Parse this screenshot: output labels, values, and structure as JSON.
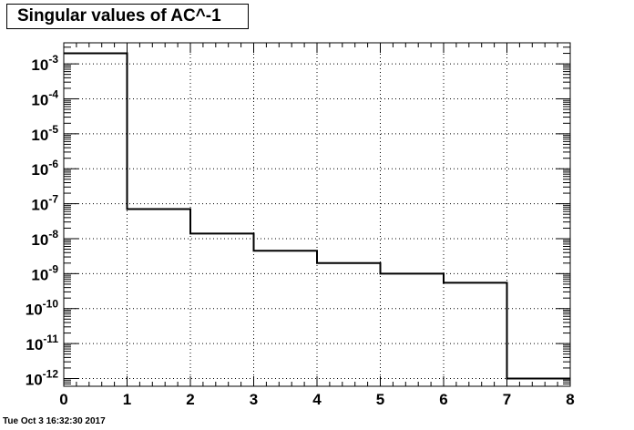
{
  "title": "Singular values of AC^-1",
  "timestamp": "Tue Oct  3 16:32:30 2017",
  "chart_data": {
    "type": "histogram-step",
    "title": "Singular values of AC^-1",
    "xlabel": "",
    "ylabel": "",
    "x_edges": [
      0,
      1,
      2,
      3,
      4,
      5,
      6,
      7,
      8
    ],
    "values": [
      0.002,
      7e-08,
      1.4e-08,
      4.5e-09,
      2e-09,
      1e-09,
      5.5e-10,
      1e-12
    ],
    "xlim": [
      0,
      8
    ],
    "ylim": [
      6e-13,
      0.004
    ],
    "yscale": "log",
    "x_ticks": [
      "0",
      "1",
      "2",
      "3",
      "4",
      "5",
      "6",
      "7",
      "8"
    ],
    "y_tick_exponents": [
      "-12",
      "-11",
      "-10",
      "-9",
      "-8",
      "-7",
      "-6",
      "-5",
      "-4",
      "-3"
    ],
    "y_tick_base": "10",
    "grid": true,
    "line_color": "#000000"
  }
}
